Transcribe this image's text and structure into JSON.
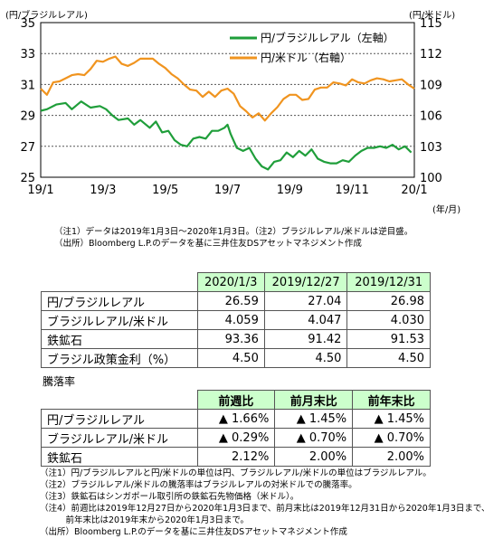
{
  "chart_data": {
    "type": "line",
    "left_unit": "(円/ブラジルレアル)",
    "right_unit": "(円/米ドル)",
    "x_unit": "(年/月)",
    "x_ticks": [
      "19/1",
      "19/3",
      "19/5",
      "19/7",
      "19/9",
      "19/11",
      "20/1"
    ],
    "y_left_ticks": [
      35,
      33,
      31,
      29,
      27,
      25
    ],
    "y_right_ticks": [
      115,
      112,
      109,
      106,
      103,
      100
    ],
    "ylim_left": [
      25,
      35
    ],
    "ylim_right": [
      100,
      115
    ],
    "grid": true,
    "legend_placement": "top-right",
    "series": [
      {
        "name": "円/ブラジルレアル（左軸）",
        "axis": "left",
        "color": "#1f9e3a",
        "points": [
          [
            0,
            29.3
          ],
          [
            0.2,
            29.4
          ],
          [
            0.5,
            29.7
          ],
          [
            0.8,
            29.8
          ],
          [
            1.0,
            29.4
          ],
          [
            1.3,
            29.9
          ],
          [
            1.6,
            29.5
          ],
          [
            1.9,
            29.6
          ],
          [
            2.1,
            29.4
          ],
          [
            2.3,
            29.0
          ],
          [
            2.5,
            28.7
          ],
          [
            2.8,
            28.8
          ],
          [
            3.0,
            28.4
          ],
          [
            3.2,
            28.7
          ],
          [
            3.5,
            28.2
          ],
          [
            3.7,
            28.6
          ],
          [
            3.9,
            27.9
          ],
          [
            4.1,
            28.0
          ],
          [
            4.3,
            27.4
          ],
          [
            4.5,
            27.1
          ],
          [
            4.7,
            27.0
          ],
          [
            4.9,
            27.5
          ],
          [
            5.1,
            27.6
          ],
          [
            5.3,
            27.5
          ],
          [
            5.5,
            28.0
          ],
          [
            5.7,
            28.0
          ],
          [
            5.9,
            28.2
          ],
          [
            6.0,
            28.4
          ],
          [
            6.1,
            27.8
          ],
          [
            6.3,
            26.9
          ],
          [
            6.5,
            26.7
          ],
          [
            6.7,
            26.9
          ],
          [
            6.9,
            26.2
          ],
          [
            7.1,
            25.7
          ],
          [
            7.3,
            25.5
          ],
          [
            7.5,
            26.0
          ],
          [
            7.7,
            26.1
          ],
          [
            7.9,
            26.6
          ],
          [
            8.1,
            26.3
          ],
          [
            8.3,
            26.7
          ],
          [
            8.5,
            26.4
          ],
          [
            8.7,
            26.8
          ],
          [
            8.9,
            26.2
          ],
          [
            9.1,
            26.0
          ],
          [
            9.3,
            25.9
          ],
          [
            9.5,
            25.9
          ],
          [
            9.7,
            26.1
          ],
          [
            9.9,
            26.0
          ],
          [
            10.1,
            26.4
          ],
          [
            10.3,
            26.7
          ],
          [
            10.5,
            26.9
          ],
          [
            10.7,
            26.9
          ],
          [
            10.9,
            27.0
          ],
          [
            11.1,
            26.9
          ],
          [
            11.3,
            27.1
          ],
          [
            11.5,
            26.8
          ],
          [
            11.7,
            27.0
          ],
          [
            11.9,
            26.6
          ]
        ]
      },
      {
        "name": "円/米ドル（右軸）",
        "axis": "right",
        "color": "#f0941f",
        "points": [
          [
            0,
            108.6
          ],
          [
            0.2,
            108.0
          ],
          [
            0.4,
            109.2
          ],
          [
            0.6,
            109.3
          ],
          [
            0.8,
            109.6
          ],
          [
            1.0,
            109.9
          ],
          [
            1.2,
            110.0
          ],
          [
            1.4,
            109.9
          ],
          [
            1.6,
            110.5
          ],
          [
            1.8,
            111.3
          ],
          [
            2.0,
            111.2
          ],
          [
            2.2,
            111.5
          ],
          [
            2.4,
            111.7
          ],
          [
            2.6,
            111.0
          ],
          [
            2.8,
            110.8
          ],
          [
            3.0,
            111.1
          ],
          [
            3.2,
            111.5
          ],
          [
            3.4,
            111.5
          ],
          [
            3.6,
            111.5
          ],
          [
            3.8,
            111.0
          ],
          [
            4.0,
            110.6
          ],
          [
            4.2,
            110.0
          ],
          [
            4.4,
            109.6
          ],
          [
            4.6,
            109.0
          ],
          [
            4.8,
            108.5
          ],
          [
            5.0,
            108.4
          ],
          [
            5.2,
            107.8
          ],
          [
            5.4,
            108.3
          ],
          [
            5.6,
            107.8
          ],
          [
            5.8,
            108.4
          ],
          [
            6.0,
            108.6
          ],
          [
            6.2,
            108.1
          ],
          [
            6.4,
            106.9
          ],
          [
            6.6,
            106.4
          ],
          [
            6.8,
            105.8
          ],
          [
            7.0,
            106.2
          ],
          [
            7.2,
            105.5
          ],
          [
            7.4,
            106.2
          ],
          [
            7.6,
            106.8
          ],
          [
            7.8,
            107.6
          ],
          [
            8.0,
            108.0
          ],
          [
            8.2,
            108.0
          ],
          [
            8.4,
            107.5
          ],
          [
            8.6,
            107.6
          ],
          [
            8.8,
            108.5
          ],
          [
            9.0,
            108.7
          ],
          [
            9.2,
            108.7
          ],
          [
            9.4,
            109.2
          ],
          [
            9.6,
            109.1
          ],
          [
            9.8,
            108.9
          ],
          [
            10.0,
            109.5
          ],
          [
            10.2,
            109.2
          ],
          [
            10.4,
            109.1
          ],
          [
            10.6,
            109.4
          ],
          [
            10.8,
            109.6
          ],
          [
            11.0,
            109.5
          ],
          [
            11.2,
            109.3
          ],
          [
            11.4,
            109.4
          ],
          [
            11.6,
            109.5
          ],
          [
            11.8,
            109.0
          ],
          [
            12.0,
            108.6
          ]
        ]
      }
    ]
  },
  "chart_notes": [
    "（注1）データは2019年1月3日～2020年1月3日。（注2）ブラジルレアル/米ドルは逆目盛。",
    "（出所）Bloomberg L.P.のデータを基に三井住友DSアセットマネジメント作成"
  ],
  "table1": {
    "headers": [
      "2020/1/3",
      "2019/12/27",
      "2019/12/31"
    ],
    "rows": [
      {
        "label": "円/ブラジルレアル",
        "values": [
          "26.59",
          "27.04",
          "26.98"
        ]
      },
      {
        "label": "ブラジルレアル/米ドル",
        "values": [
          "4.059",
          "4.047",
          "4.030"
        ]
      },
      {
        "label": "鉄鉱石",
        "values": [
          "93.36",
          "91.42",
          "91.53"
        ]
      },
      {
        "label": "ブラジル政策金利（%）",
        "values": [
          "4.50",
          "4.50",
          "4.50"
        ]
      }
    ]
  },
  "table2": {
    "title": "騰落率",
    "headers": [
      "前週比",
      "前月末比",
      "前年末比"
    ],
    "rows": [
      {
        "label": "円/ブラジルレアル",
        "values": [
          "▲ 1.66%",
          "▲ 1.45%",
          "▲ 1.45%"
        ]
      },
      {
        "label": "ブラジルレアル/米ドル",
        "values": [
          "▲ 0.29%",
          "▲ 0.70%",
          "▲ 0.70%"
        ]
      },
      {
        "label": "鉄鉱石",
        "values": [
          "2.12%",
          "2.00%",
          "2.00%"
        ]
      }
    ]
  },
  "table_notes": [
    "（注1）円/ブラジルレアルと円/米ドルの単位は円、ブラジルレアル/米ドルの単位はブラジルレアル。",
    "（注2）ブラジルレアル/米ドルの騰落率はブラジルレアルの対米ドルでの騰落率。",
    "（注3）鉄鉱石はシンガポール取引所の鉄鉱石先物価格（米ドル）。",
    "（注4）前週比は2019年12月27日から2020年1月3日まで、前月末比は2019年12月31日から2020年1月3日まで、",
    "　　　前年末比は2019年末から2020年1月3日まで。",
    "（出所）Bloomberg L.P.のデータを基に三井住友DSアセットマネジメント作成"
  ]
}
